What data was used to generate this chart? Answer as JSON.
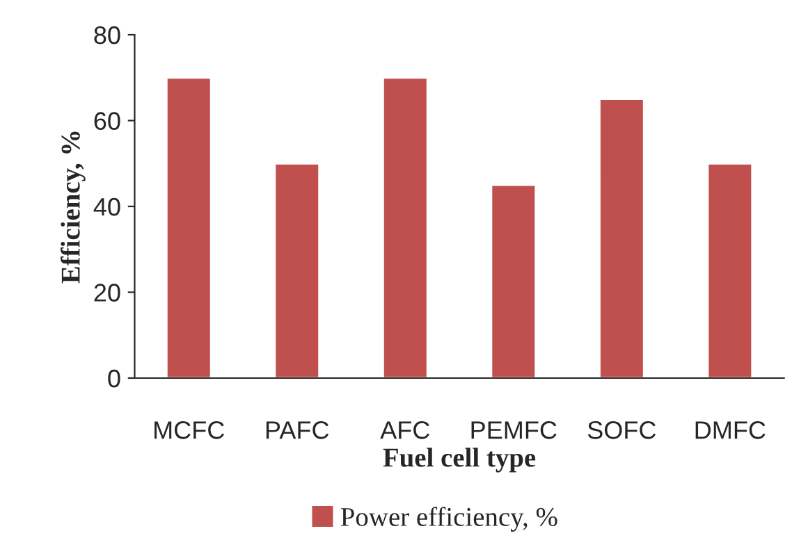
{
  "chart_data": {
    "type": "bar",
    "xlabel": "Fuel cell type",
    "ylabel": "Efficiency, %",
    "categories": [
      "MCFC",
      "PAFC",
      "AFC",
      "PEMFC",
      "SOFC",
      "DMFC"
    ],
    "series": [
      {
        "name": "Power efficiency, %",
        "color": "#c0504d",
        "values": [
          70,
          50,
          70,
          45,
          65,
          50
        ]
      }
    ],
    "ylim": [
      0,
      80
    ],
    "yticks": [
      0,
      20,
      40,
      60,
      80
    ],
    "grid": false,
    "legend": "bottom"
  }
}
